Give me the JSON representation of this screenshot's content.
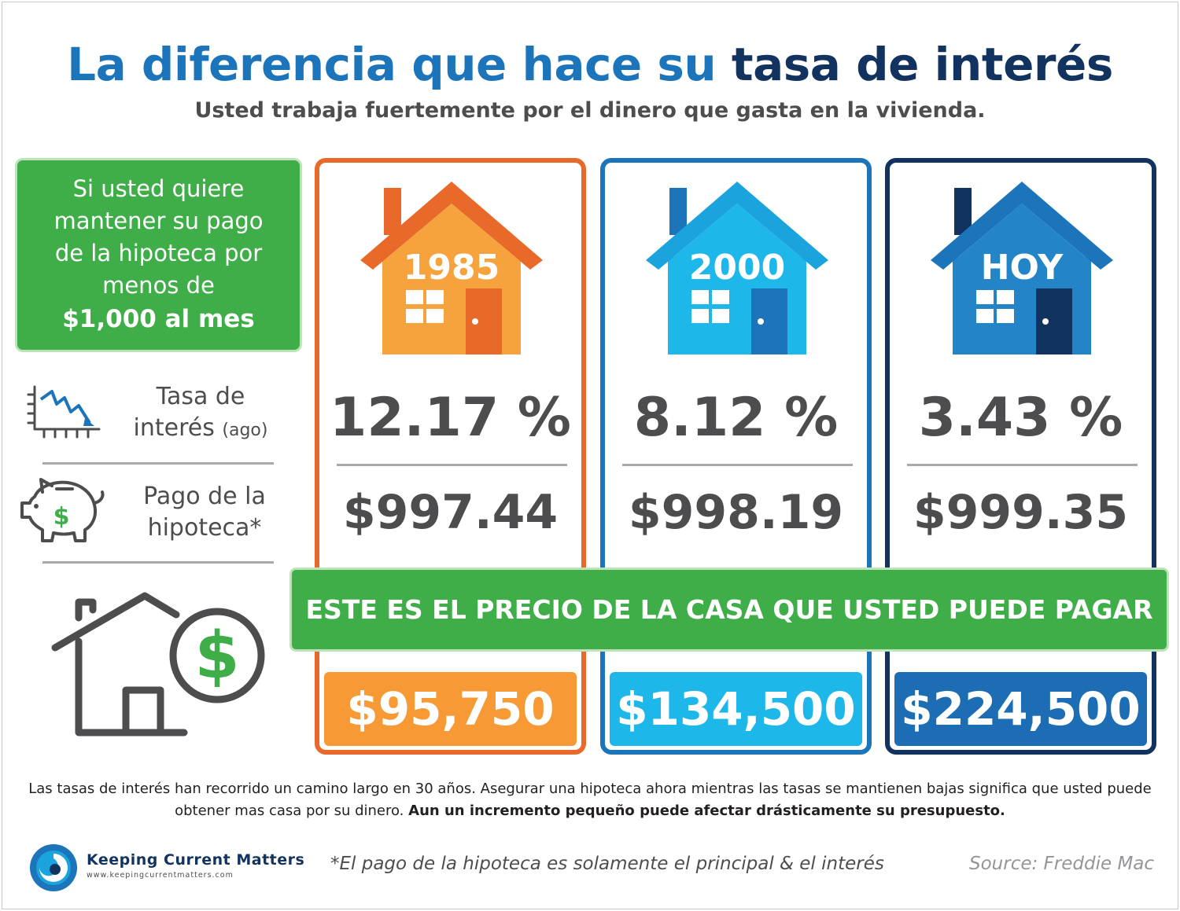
{
  "title": {
    "part1": "La diferencia que hace su",
    "part2": "tasa de interés"
  },
  "subtitle": "Usted trabaja fuertemente por el dinero que gasta en la vivienda.",
  "intro": {
    "lines": [
      "Si usted quiere",
      "mantener su pago",
      "de la hipoteca por",
      "menos de"
    ],
    "bold": "$1,000 al mes"
  },
  "rows": {
    "rate_label_1": "Tasa de",
    "rate_label_2": "interés",
    "rate_label_small": "(ago)",
    "payment_label_1": "Pago de la",
    "payment_label_2": "hipoteca*"
  },
  "columns": [
    {
      "year": "1985",
      "rate": "12.17 %",
      "payment": "$997.44",
      "price": "$95,750",
      "border": "#e8692a",
      "roof": "#f58b2a",
      "body": "#f6a23d",
      "door": "#e8692a",
      "window": "#ffffff",
      "price_bg": "#f79a35"
    },
    {
      "year": "2000",
      "rate": "8.12 %",
      "payment": "$998.19",
      "price": "$134,500",
      "border": "#1c74bb",
      "roof": "#1aa3dc",
      "body": "#1eb7ea",
      "door": "#1c74bb",
      "window": "#ffffff",
      "price_bg": "#1eb7ea"
    },
    {
      "year": "HOY",
      "rate": "3.43 %",
      "payment": "$999.35",
      "price": "$224,500",
      "border": "#12335f",
      "roof": "#1c74bb",
      "body": "#2384c8",
      "door": "#12335f",
      "window": "#ffffff",
      "price_bg": "#1c6db3"
    }
  ],
  "banner": "ESTE ES EL PRECIO DE LA CASA QUE USTED PUEDE PAGAR",
  "footer": {
    "text": "Las tasas de interés han recorrido un camino largo en 30 años. Asegurar una hipoteca ahora mientras las tasas se mantienen bajas significa que usted puede obtener mas casa por su dinero.",
    "bold": "Aun un incremento pequeño puede afectar drásticamente su presupuesto."
  },
  "logo": {
    "name": "Keeping Current Matters",
    "url": "www.keepingcurrentmatters.com"
  },
  "note": "*El pago de la hipoteca es solamente el principal & el interés",
  "source": "Source: Freddie Mac",
  "colors": {
    "green": "#3fae49",
    "blue": "#1c74bb",
    "navy": "#12335f",
    "orange": "#e8692a",
    "gray_text": "#4d4d4f"
  }
}
